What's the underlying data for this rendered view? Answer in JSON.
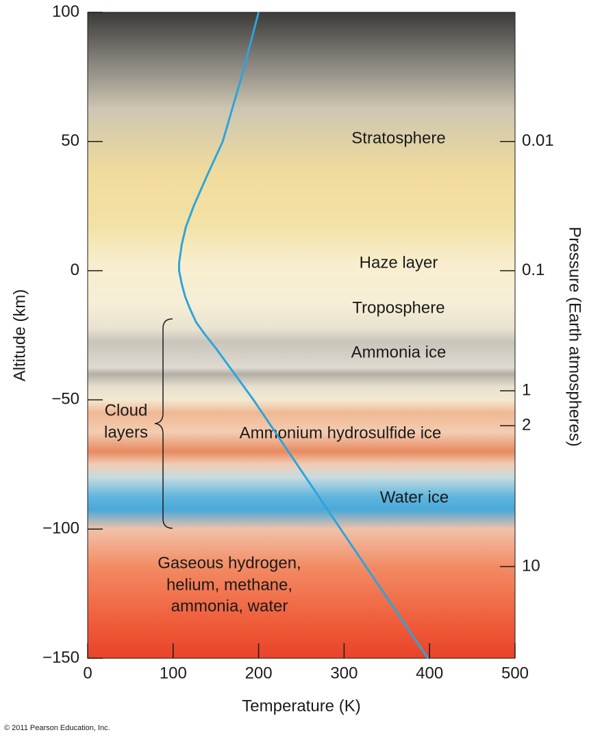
{
  "chart_data": {
    "type": "line",
    "x_label": "Temperature (K)",
    "y_label": "Altitude (km)",
    "y2_label": "Pressure (Earth atmospheres)",
    "x": [
      200,
      180,
      158,
      140,
      124,
      115,
      110,
      107,
      107,
      110,
      114,
      120,
      127,
      138,
      150,
      161,
      172,
      183,
      194,
      245,
      296,
      347,
      398
    ],
    "values": [
      100,
      75,
      50,
      37,
      25,
      17,
      10,
      3,
      0,
      -5,
      -10,
      -15,
      -20,
      -25,
      -30,
      -35,
      -40,
      -45,
      -50,
      -75,
      -100,
      -125,
      -150
    ],
    "color": "#2aa5dc",
    "xlim": [
      0,
      500
    ],
    "ylim": [
      -150,
      100
    ],
    "xticks": [
      0,
      100,
      200,
      300,
      400,
      500
    ],
    "yticks": [
      100,
      50,
      0,
      {
        "value": -50,
        "label": "−50"
      },
      {
        "value": -100,
        "label": "−100"
      },
      {
        "value": -150,
        "label": "−150"
      }
    ],
    "pressure_levels": [
      {
        "pressure": 0.01,
        "altitude": 50
      },
      {
        "pressure": 0.1,
        "altitude": 0
      },
      {
        "pressure": 1,
        "altitude": -46.5
      },
      {
        "pressure": 2,
        "altitude": -60
      },
      {
        "pressure": 10,
        "altitude": -114.5
      }
    ],
    "annotations": [
      "Stratosphere",
      "Haze layer",
      "Troposphere",
      "Ammonia ice",
      "Ammonium hydrosulfide ice",
      "Water ice"
    ],
    "gas_label": [
      "Gaseous hydrogen,",
      "helium, methane,",
      "ammonia, water"
    ],
    "cloud_label": [
      "Cloud",
      "layers"
    ],
    "credit": "© 2011 Pearson Education, Inc."
  }
}
